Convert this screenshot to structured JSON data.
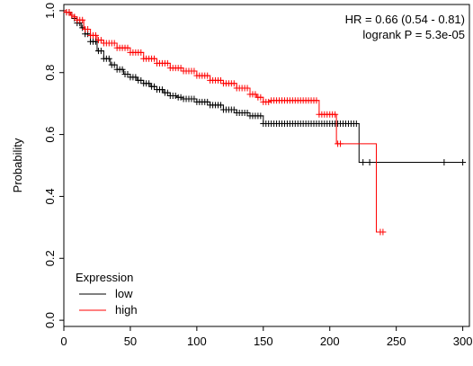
{
  "chart_data": {
    "type": "line",
    "xlabel": "",
    "ylabel": "Probability",
    "xlim": [
      0,
      305
    ],
    "ylim": [
      -0.02,
      1.02
    ],
    "xticks": [
      0,
      50,
      100,
      150,
      200,
      250,
      300
    ],
    "xtick_labels": [
      "0",
      "50",
      "100",
      "150",
      "200",
      "250",
      "300"
    ],
    "yticks": [
      0.0,
      0.2,
      0.4,
      0.6,
      0.8,
      1.0
    ],
    "ytick_labels": [
      "0.0",
      "0.2",
      "0.4",
      "0.6",
      "0.8",
      "1.0"
    ],
    "annotations": [
      "HR = 0.66 (0.54 - 0.81)",
      "logrank P = 5.3e-05"
    ],
    "legend": {
      "title": "Expression",
      "placement": "bottom-left",
      "entries": [
        {
          "label": "low",
          "color": "#000000"
        },
        {
          "label": "high",
          "color": "#ff0000"
        }
      ]
    },
    "series": [
      {
        "name": "low",
        "color": "#000000",
        "x": [
          0,
          2,
          5,
          8,
          10,
          13,
          16,
          20,
          25,
          30,
          35,
          40,
          45,
          50,
          55,
          60,
          65,
          70,
          75,
          80,
          85,
          90,
          100,
          110,
          120,
          130,
          140,
          150,
          160,
          180,
          200,
          222,
          222,
          240,
          260,
          300
        ],
        "y": [
          1.0,
          0.995,
          0.985,
          0.975,
          0.96,
          0.945,
          0.925,
          0.9,
          0.87,
          0.845,
          0.825,
          0.81,
          0.795,
          0.785,
          0.775,
          0.765,
          0.755,
          0.745,
          0.735,
          0.725,
          0.72,
          0.715,
          0.705,
          0.695,
          0.68,
          0.67,
          0.66,
          0.635,
          0.635,
          0.635,
          0.635,
          0.635,
          0.51,
          0.51,
          0.51,
          0.51
        ],
        "censor_x": [
          2,
          4,
          6,
          8,
          10,
          12,
          14,
          16,
          18,
          20,
          22,
          24,
          26,
          28,
          30,
          32,
          34,
          36,
          38,
          40,
          42,
          44,
          46,
          48,
          50,
          52,
          54,
          56,
          58,
          60,
          62,
          64,
          66,
          68,
          70,
          72,
          74,
          76,
          78,
          80,
          82,
          84,
          86,
          88,
          90,
          92,
          94,
          96,
          98,
          100,
          102,
          104,
          106,
          108,
          110,
          112,
          114,
          116,
          118,
          120,
          122,
          124,
          126,
          128,
          130,
          132,
          134,
          136,
          138,
          140,
          142,
          144,
          146,
          148,
          150,
          152,
          154,
          156,
          158,
          160,
          162,
          164,
          166,
          168,
          170,
          172,
          174,
          176,
          178,
          180,
          182,
          184,
          186,
          188,
          190,
          192,
          194,
          196,
          198,
          200,
          202,
          204,
          206,
          208,
          210,
          212,
          214,
          216,
          218,
          220,
          225,
          230,
          286,
          300
        ]
      },
      {
        "name": "high",
        "color": "#ff0000",
        "x": [
          0,
          2,
          5,
          8,
          10,
          15,
          20,
          25,
          30,
          40,
          50,
          60,
          70,
          80,
          90,
          100,
          110,
          120,
          130,
          140,
          145,
          150,
          155,
          170,
          190,
          192,
          205,
          205,
          220,
          235,
          235,
          240
        ],
        "y": [
          1.0,
          0.995,
          0.985,
          0.98,
          0.97,
          0.94,
          0.92,
          0.905,
          0.895,
          0.88,
          0.865,
          0.845,
          0.83,
          0.815,
          0.805,
          0.79,
          0.775,
          0.765,
          0.75,
          0.73,
          0.72,
          0.705,
          0.71,
          0.71,
          0.71,
          0.665,
          0.665,
          0.57,
          0.57,
          0.57,
          0.285,
          0.285
        ],
        "censor_x": [
          2,
          4,
          6,
          8,
          10,
          12,
          14,
          16,
          18,
          20,
          22,
          24,
          26,
          28,
          30,
          32,
          34,
          36,
          38,
          40,
          42,
          44,
          46,
          48,
          50,
          52,
          54,
          56,
          58,
          60,
          62,
          64,
          66,
          68,
          70,
          72,
          74,
          76,
          78,
          80,
          82,
          84,
          86,
          88,
          90,
          92,
          94,
          96,
          98,
          100,
          102,
          104,
          106,
          108,
          110,
          112,
          114,
          116,
          118,
          120,
          122,
          124,
          126,
          128,
          130,
          132,
          134,
          136,
          138,
          140,
          142,
          144,
          146,
          148,
          150,
          152,
          154,
          156,
          158,
          160,
          162,
          164,
          166,
          168,
          170,
          172,
          174,
          176,
          178,
          180,
          182,
          184,
          186,
          188,
          190,
          192,
          194,
          196,
          198,
          200,
          202,
          204,
          206,
          208,
          238,
          240
        ]
      }
    ]
  }
}
